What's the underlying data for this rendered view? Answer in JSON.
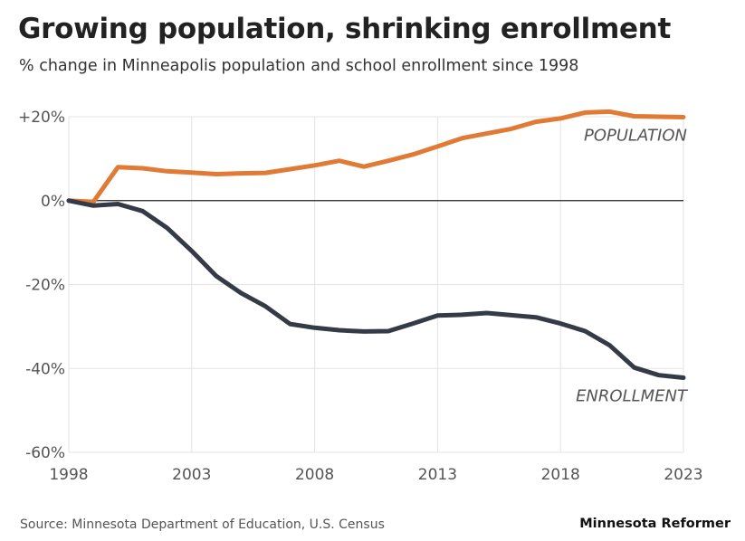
{
  "header": {
    "title": "Growing population, shrinking enrollment",
    "subtitle": "% change in Minneapolis population and school enrollment since 1998"
  },
  "footer": {
    "source": "Source: Minnesota Department of Education, U.S. Census",
    "brand": "Minnesota Reformer"
  },
  "chart_data": {
    "type": "line",
    "title": "Growing population, shrinking enrollment",
    "subtitle": "% change in Minneapolis population and school enrollment since 1998",
    "xlabel": "",
    "ylabel": "",
    "xlim": [
      1998,
      2023
    ],
    "ylim": [
      -60,
      20
    ],
    "grid": true,
    "x_ticks": [
      1998,
      2003,
      2008,
      2013,
      2018,
      2023
    ],
    "x_tick_labels": [
      "1998",
      "2003",
      "2008",
      "2013",
      "2018",
      "2023"
    ],
    "y_ticks": [
      20,
      0,
      -20,
      -40,
      -60
    ],
    "y_tick_labels": [
      "+20%",
      "0%",
      "-20%",
      "-40%",
      "-60%"
    ],
    "x": [
      1998,
      1999,
      2000,
      2001,
      2002,
      2003,
      2004,
      2005,
      2006,
      2007,
      2008,
      2009,
      2010,
      2011,
      2012,
      2013,
      2014,
      2015,
      2016,
      2017,
      2018,
      2019,
      2020,
      2021,
      2022,
      2023
    ],
    "series": [
      {
        "name": "POPULATION",
        "color": "#e07a34",
        "values": [
          0,
          -0.3,
          8,
          7.7,
          7,
          6.7,
          6.3,
          6.5,
          6.6,
          7.5,
          8.4,
          9.5,
          8.1,
          9.5,
          11,
          12.9,
          14.9,
          16,
          17.1,
          18.8,
          19.6,
          21,
          21.2,
          20.1,
          20,
          19.9
        ]
      },
      {
        "name": "ENROLLMENT",
        "color": "#343a46",
        "values": [
          0,
          -1.2,
          -0.8,
          -2.5,
          -6.5,
          -12,
          -18,
          -22,
          -25.2,
          -29.4,
          -30.3,
          -30.9,
          -31.2,
          -31.1,
          -29.3,
          -27.4,
          -27.2,
          -26.8,
          -27.3,
          -27.8,
          -29.3,
          -31.1,
          -34.5,
          -39.8,
          -41.6,
          -42.2
        ]
      }
    ],
    "zero_line": true
  }
}
